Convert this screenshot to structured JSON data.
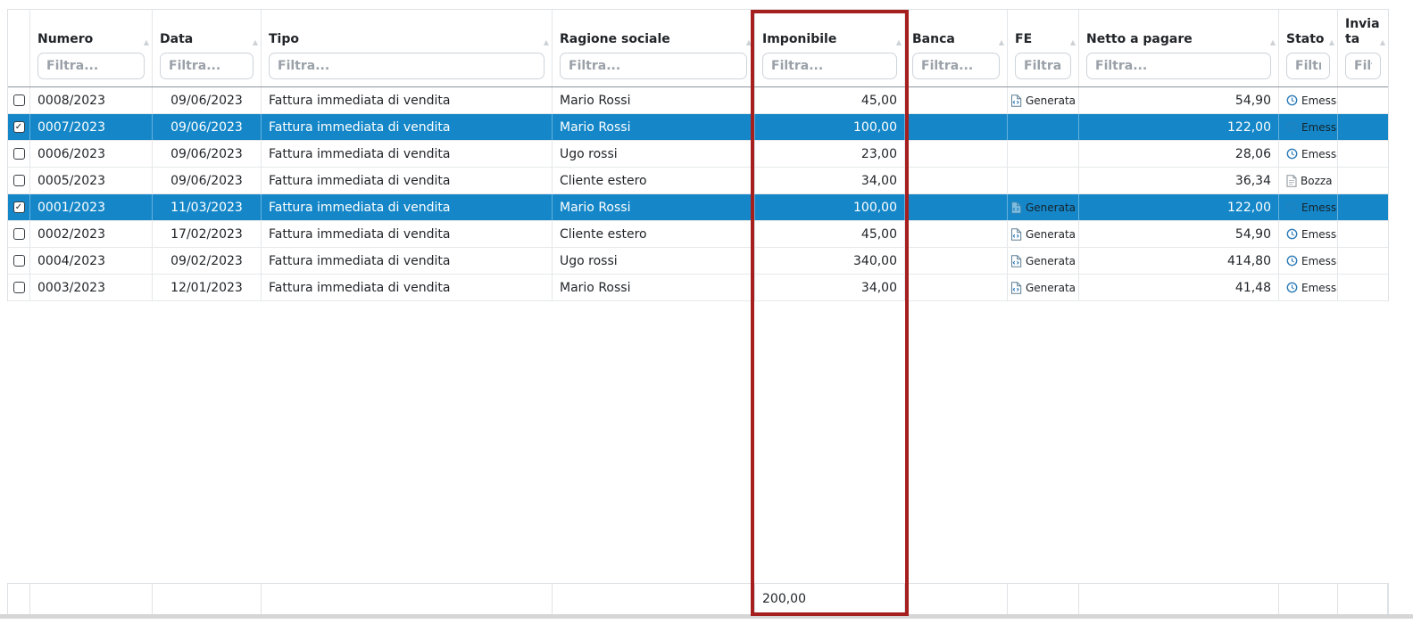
{
  "colors": {
    "selection_blue": "#1587c8",
    "highlight_red": "#a51f1f",
    "status_icon_blue": "#2e7cb8",
    "grid_border": "#dee2e6"
  },
  "icons": {
    "sort": "sort-asc-icon",
    "sort_glyph": "▲",
    "checkbox_checked_glyph": "✓",
    "fe_generata": "file-generated-icon",
    "stato_emessa": "clock-icon",
    "stato_bozza": "draft-file-icon"
  },
  "table": {
    "highlighted_column": "Imponibile",
    "columns": [
      {
        "key": "select",
        "label": "",
        "filter": ""
      },
      {
        "key": "numero",
        "label": "Numero",
        "filter": "Filtra..."
      },
      {
        "key": "data",
        "label": "Data",
        "filter": "Filtra..."
      },
      {
        "key": "tipo",
        "label": "Tipo",
        "filter": "Filtra..."
      },
      {
        "key": "ragione_sociale",
        "label": "Ragione sociale",
        "filter": "Filtra..."
      },
      {
        "key": "imponibile",
        "label": "Imponibile",
        "filter": "Filtra..."
      },
      {
        "key": "banca",
        "label": "Banca",
        "filter": "Filtra..."
      },
      {
        "key": "fe",
        "label": "FE",
        "filter": "Filtra..."
      },
      {
        "key": "netto_a_pagare",
        "label": "Netto a pagare",
        "filter": "Filtra..."
      },
      {
        "key": "stato",
        "label": "Stato",
        "filter": "Filtra..."
      },
      {
        "key": "inviata",
        "label": "Inviata",
        "filter": "Filtra..."
      }
    ],
    "rows": [
      {
        "selected": false,
        "numero": "0008/2023",
        "data": "09/06/2023",
        "tipo": "Fattura immediata di vendita",
        "ragione_sociale": "Mario Rossi",
        "imponibile": "45,00",
        "banca": "",
        "fe": "Generata",
        "netto_a_pagare": "54,90",
        "stato": "Emessa",
        "inviata": ""
      },
      {
        "selected": true,
        "numero": "0007/2023",
        "data": "09/06/2023",
        "tipo": "Fattura immediata di vendita",
        "ragione_sociale": "Mario Rossi",
        "imponibile": "100,00",
        "banca": "",
        "fe": "",
        "netto_a_pagare": "122,00",
        "stato": "Emessa",
        "inviata": ""
      },
      {
        "selected": false,
        "numero": "0006/2023",
        "data": "09/06/2023",
        "tipo": "Fattura immediata di vendita",
        "ragione_sociale": "Ugo rossi",
        "imponibile": "23,00",
        "banca": "",
        "fe": "",
        "netto_a_pagare": "28,06",
        "stato": "Emessa",
        "inviata": ""
      },
      {
        "selected": false,
        "numero": "0005/2023",
        "data": "09/06/2023",
        "tipo": "Fattura immediata di vendita",
        "ragione_sociale": "Cliente estero",
        "imponibile": "34,00",
        "banca": "",
        "fe": "",
        "netto_a_pagare": "36,34",
        "stato": "Bozza",
        "inviata": ""
      },
      {
        "selected": true,
        "numero": "0001/2023",
        "data": "11/03/2023",
        "tipo": "Fattura immediata di vendita",
        "ragione_sociale": "Mario Rossi",
        "imponibile": "100,00",
        "banca": "",
        "fe": "Generata",
        "netto_a_pagare": "122,00",
        "stato": "Emessa",
        "inviata": ""
      },
      {
        "selected": false,
        "numero": "0002/2023",
        "data": "17/02/2023",
        "tipo": "Fattura immediata di vendita",
        "ragione_sociale": "Cliente estero",
        "imponibile": "45,00",
        "banca": "",
        "fe": "Generata",
        "netto_a_pagare": "54,90",
        "stato": "Emessa",
        "inviata": ""
      },
      {
        "selected": false,
        "numero": "0004/2023",
        "data": "09/02/2023",
        "tipo": "Fattura immediata di vendita",
        "ragione_sociale": "Ugo rossi",
        "imponibile": "340,00",
        "banca": "",
        "fe": "Generata",
        "netto_a_pagare": "414,80",
        "stato": "Emessa",
        "inviata": ""
      },
      {
        "selected": false,
        "numero": "0003/2023",
        "data": "12/01/2023",
        "tipo": "Fattura immediata di vendita",
        "ragione_sociale": "Mario Rossi",
        "imponibile": "34,00",
        "banca": "",
        "fe": "Generata",
        "netto_a_pagare": "41,48",
        "stato": "Emessa",
        "inviata": ""
      }
    ],
    "footer": {
      "imponibile_total": "200,00"
    }
  }
}
